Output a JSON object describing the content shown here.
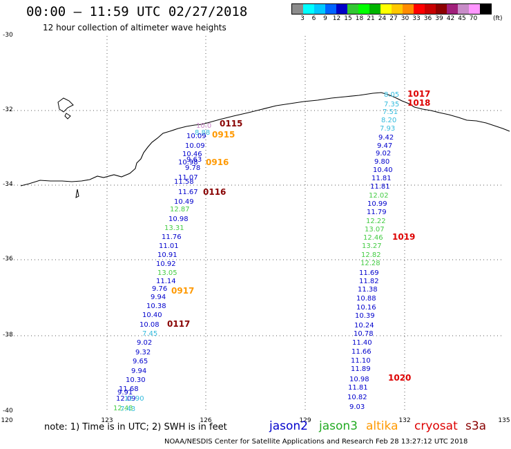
{
  "title": "00:00 – 11:59 UTC 02/27/2018",
  "subtitle": "12 hour collection of altimeter wave heights",
  "colorbar": {
    "colors": [
      "#8c8c8c",
      "#00ffff",
      "#00c8ff",
      "#0064ff",
      "#0000c8",
      "#32c832",
      "#00ff00",
      "#00b400",
      "#ffff00",
      "#ffc800",
      "#ff8c00",
      "#ff0000",
      "#c80000",
      "#8c0000",
      "#a0207a",
      "#c88cc8",
      "#ff96ff",
      "#000000"
    ],
    "labels": [
      "3",
      "6",
      "9",
      "12",
      "15",
      "18",
      "21",
      "24",
      "27",
      "30",
      "33",
      "36",
      "39",
      "42",
      "45",
      "70"
    ],
    "unit": "(ft)"
  },
  "lat_labels": [
    "-30",
    "-32",
    "-34",
    "-36",
    "-38",
    "-40"
  ],
  "lon_labels": [
    "120",
    "123",
    "126",
    "129",
    "132",
    "135"
  ],
  "note": "note: 1) Time is in UTC; 2) SWH is in feet",
  "satellites": [
    {
      "name": "jason2",
      "color": "#0000cc"
    },
    {
      "name": "jason3",
      "color": "#22aa22"
    },
    {
      "name": "altika",
      "color": "#ff9900"
    },
    {
      "name": "cryosat",
      "color": "#dd0000"
    },
    {
      "name": "s3a",
      "color": "#880000"
    }
  ],
  "credit": "NOAA/NESDIS Center for Satellite Applications and Research   Feb 28 13:27:12 UTC 2018",
  "track_times": [
    {
      "text": "1017",
      "color": "#dd0000"
    },
    {
      "text": "1018",
      "color": "#dd0000"
    },
    {
      "text": "0115",
      "color": "#880000"
    },
    {
      "text": "0915",
      "color": "#ff9900"
    },
    {
      "text": "0916",
      "color": "#ff9900"
    },
    {
      "text": "0116",
      "color": "#880000"
    },
    {
      "text": "1019",
      "color": "#dd0000"
    },
    {
      "text": "0917",
      "color": "#ff9900"
    },
    {
      "text": "0117",
      "color": "#880000"
    },
    {
      "text": "1020",
      "color": "#dd0000"
    }
  ],
  "values": [
    {
      "v": "8.05",
      "c": "#33bbdd"
    },
    {
      "v": "7.35",
      "c": "#33bbdd"
    },
    {
      "v": "7.51",
      "c": "#33bbdd"
    },
    {
      "v": "8.20",
      "c": "#33bbdd"
    },
    {
      "v": "7.93",
      "c": "#33bbdd"
    },
    {
      "v": "9.42",
      "c": "#0000cc"
    },
    {
      "v": "9.47",
      "c": "#0000cc"
    },
    {
      "v": "9.02",
      "c": "#0000cc"
    },
    {
      "v": "9.80",
      "c": "#0000cc"
    },
    {
      "v": "10.40",
      "c": "#0000cc"
    },
    {
      "v": "11.81",
      "c": "#0000cc"
    },
    {
      "v": "11.81",
      "c": "#0000cc"
    },
    {
      "v": "12.02",
      "c": "#44cc44"
    },
    {
      "v": "10.99",
      "c": "#0000cc"
    },
    {
      "v": "11.79",
      "c": "#0000cc"
    },
    {
      "v": "12.22",
      "c": "#44cc44"
    },
    {
      "v": "13.07",
      "c": "#44cc44"
    },
    {
      "v": "12.46",
      "c": "#44cc44"
    },
    {
      "v": "13.27",
      "c": "#44cc44"
    },
    {
      "v": "12.82",
      "c": "#44cc44"
    },
    {
      "v": "12.28",
      "c": "#44cc44"
    },
    {
      "v": "11.69",
      "c": "#0000cc"
    },
    {
      "v": "11.82",
      "c": "#0000cc"
    },
    {
      "v": "11.38",
      "c": "#0000cc"
    },
    {
      "v": "10.88",
      "c": "#0000cc"
    },
    {
      "v": "10.16",
      "c": "#0000cc"
    },
    {
      "v": "10.39",
      "c": "#0000cc"
    },
    {
      "v": "10.24",
      "c": "#0000cc"
    },
    {
      "v": "10.78",
      "c": "#0000cc"
    },
    {
      "v": "11.40",
      "c": "#0000cc"
    },
    {
      "v": "11.66",
      "c": "#0000cc"
    },
    {
      "v": "11.10",
      "c": "#0000cc"
    },
    {
      "v": "11.89",
      "c": "#0000cc"
    },
    {
      "v": "10.98",
      "c": "#0000cc"
    },
    {
      "v": "11.81",
      "c": "#0000cc"
    },
    {
      "v": "10.82",
      "c": "#0000cc"
    },
    {
      "v": "9.03",
      "c": "#0000cc"
    },
    {
      "v": "10.0",
      "c": "#cc88cc"
    },
    {
      "v": "8.88",
      "c": "#33bbdd"
    },
    {
      "v": "10.09",
      "c": "#0000cc"
    },
    {
      "v": "10.09",
      "c": "#0000cc"
    },
    {
      "v": "10.46",
      "c": "#0000cc"
    },
    {
      "v": "10.98",
      "c": "#0000cc"
    },
    {
      "v": "9.63",
      "c": "#0000cc"
    },
    {
      "v": "9.78",
      "c": "#0000cc"
    },
    {
      "v": "11.07",
      "c": "#0000cc"
    },
    {
      "v": "11.58",
      "c": "#0000cc"
    },
    {
      "v": "11.67",
      "c": "#0000cc"
    },
    {
      "v": "10.49",
      "c": "#0000cc"
    },
    {
      "v": "12.87",
      "c": "#44cc44"
    },
    {
      "v": "10.98",
      "c": "#0000cc"
    },
    {
      "v": "13.31",
      "c": "#44cc44"
    },
    {
      "v": "11.76",
      "c": "#0000cc"
    },
    {
      "v": "11.01",
      "c": "#0000cc"
    },
    {
      "v": "10.91",
      "c": "#0000cc"
    },
    {
      "v": "10.92",
      "c": "#0000cc"
    },
    {
      "v": "13.05",
      "c": "#44cc44"
    },
    {
      "v": "11.14",
      "c": "#0000cc"
    },
    {
      "v": "9.76",
      "c": "#0000cc"
    },
    {
      "v": "9.94",
      "c": "#0000cc"
    },
    {
      "v": "10.38",
      "c": "#0000cc"
    },
    {
      "v": "10.40",
      "c": "#0000cc"
    },
    {
      "v": "10.08",
      "c": "#0000cc"
    },
    {
      "v": "7.45",
      "c": "#33bbdd"
    },
    {
      "v": "9.02",
      "c": "#0000cc"
    },
    {
      "v": "9.32",
      "c": "#0000cc"
    },
    {
      "v": "9.65",
      "c": "#0000cc"
    },
    {
      "v": "9.94",
      "c": "#0000cc"
    },
    {
      "v": "10.30",
      "c": "#0000cc"
    },
    {
      "v": "11.68",
      "c": "#0000cc"
    },
    {
      "v": "9.91",
      "c": "#0000cc"
    },
    {
      "v": "12.09",
      "c": "#0000cc"
    },
    {
      "v": "12.90",
      "c": "#33bbdd"
    },
    {
      "v": "12.43",
      "c": "#44cc44"
    },
    {
      "v": "7.43",
      "c": "#33bbdd"
    }
  ]
}
